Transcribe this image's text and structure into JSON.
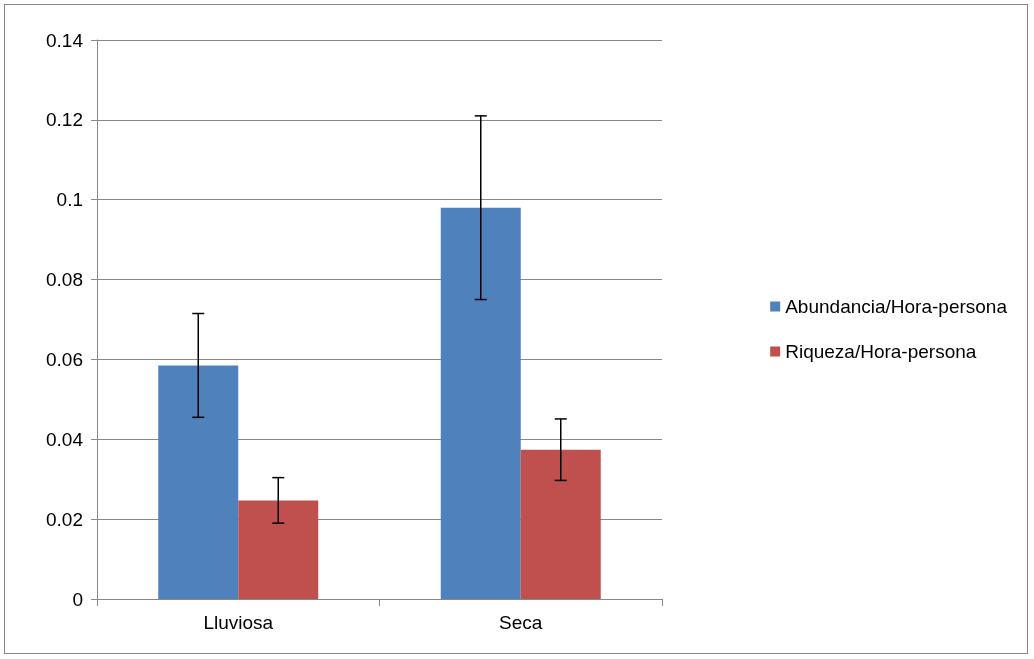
{
  "chart_data": {
    "type": "bar",
    "categories": [
      "Lluviosa",
      "Seca"
    ],
    "series": [
      {
        "name": "Abundancia/Hora-persona",
        "color": "#4f81bd",
        "values": [
          0.0585,
          0.098
        ],
        "errors": [
          0.013,
          0.023
        ]
      },
      {
        "name": "Riqueza/Hora-persona",
        "color": "#c0504d",
        "values": [
          0.0247,
          0.0374
        ],
        "errors": [
          0.0057,
          0.0077
        ]
      }
    ],
    "ylim": [
      0,
      0.14
    ],
    "yticks": [
      0,
      0.02,
      0.04,
      0.06,
      0.08,
      0.1,
      0.12,
      0.14
    ],
    "grid": "y",
    "legend": "right"
  }
}
